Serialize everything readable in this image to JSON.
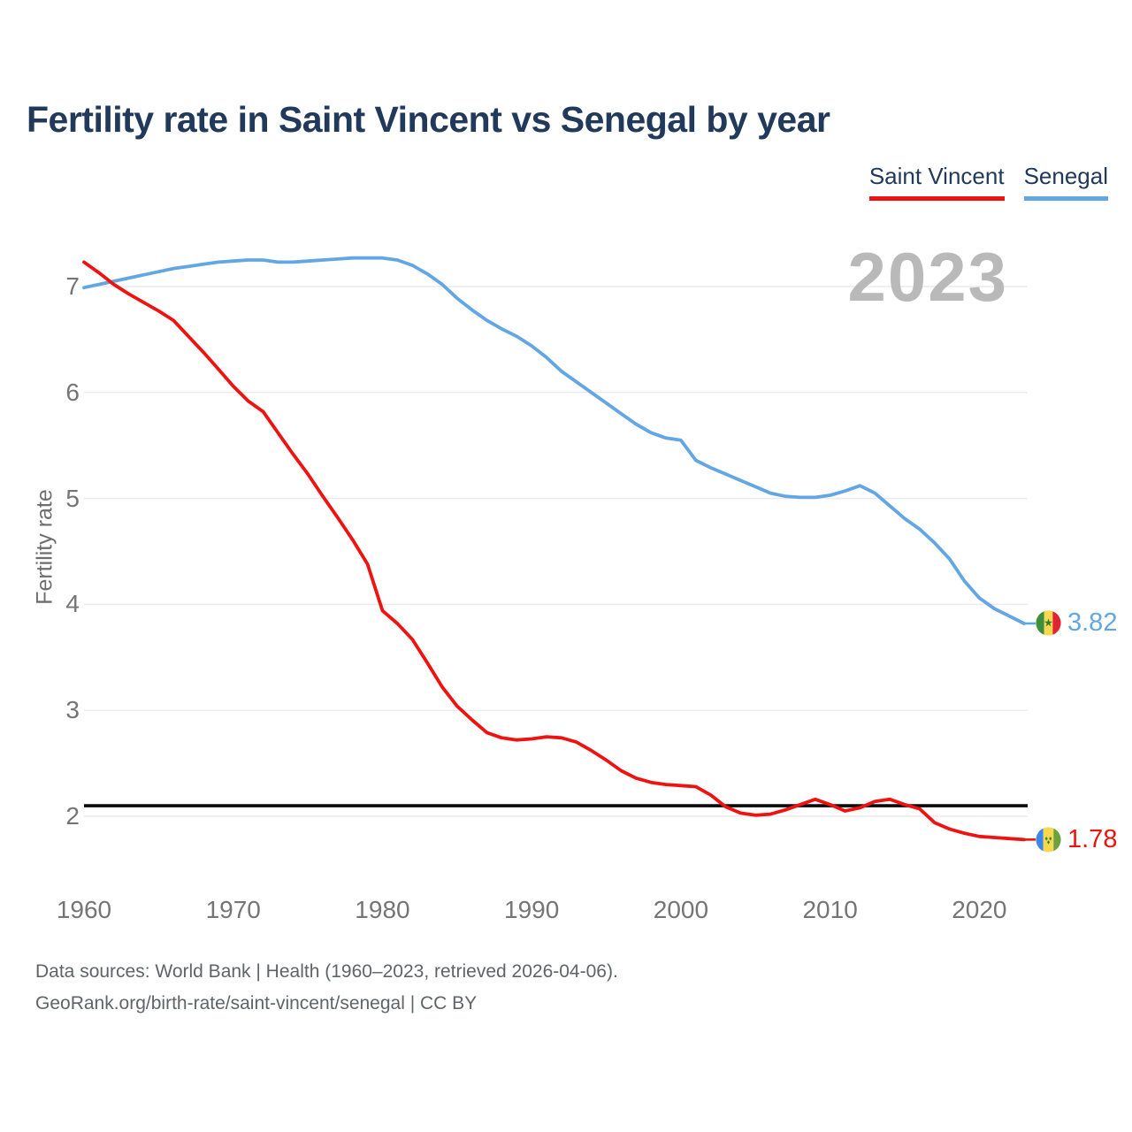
{
  "title": "Fertility rate in Saint Vincent vs Senegal by year",
  "watermark": "2023",
  "legend": [
    {
      "label": "Saint Vincent",
      "color": "#ee1310"
    },
    {
      "label": "Senegal",
      "color": "#63a6e4"
    }
  ],
  "chart_data": {
    "type": "line",
    "title": "Fertility rate in Saint Vincent vs Senegal by year",
    "xlabel": "",
    "ylabel": "Fertility rate",
    "x_ticks": [
      1960,
      1970,
      1980,
      1990,
      2000,
      2010,
      2020
    ],
    "y_ticks": [
      2,
      3,
      4,
      5,
      6,
      7
    ],
    "ylim": [
      1.55,
      7.45
    ],
    "xlim": [
      1960,
      2023
    ],
    "grid": "horizontal",
    "legend_position": "top-right",
    "x": [
      1960,
      1961,
      1962,
      1963,
      1964,
      1965,
      1966,
      1967,
      1968,
      1969,
      1970,
      1971,
      1972,
      1973,
      1974,
      1975,
      1976,
      1977,
      1978,
      1979,
      1980,
      1981,
      1982,
      1983,
      1984,
      1985,
      1986,
      1987,
      1988,
      1989,
      1990,
      1991,
      1992,
      1993,
      1994,
      1995,
      1996,
      1997,
      1998,
      1999,
      2000,
      2001,
      2002,
      2003,
      2004,
      2005,
      2006,
      2007,
      2008,
      2009,
      2010,
      2011,
      2012,
      2013,
      2014,
      2015,
      2016,
      2017,
      2018,
      2019,
      2020,
      2021,
      2022,
      2023
    ],
    "series": [
      {
        "name": "Saint Vincent",
        "color": "#ee1310",
        "end_label": "1.78",
        "values": [
          7.23,
          7.13,
          7.02,
          6.93,
          6.85,
          6.77,
          6.68,
          6.53,
          6.38,
          6.22,
          6.06,
          5.92,
          5.82,
          5.62,
          5.42,
          5.23,
          5.02,
          4.82,
          4.61,
          4.38,
          3.94,
          3.82,
          3.67,
          3.45,
          3.22,
          3.04,
          2.91,
          2.79,
          2.74,
          2.72,
          2.73,
          2.75,
          2.74,
          2.7,
          2.62,
          2.53,
          2.43,
          2.36,
          2.32,
          2.3,
          2.29,
          2.28,
          2.2,
          2.09,
          2.03,
          2.01,
          2.02,
          2.06,
          2.11,
          2.16,
          2.11,
          2.05,
          2.08,
          2.14,
          2.16,
          2.11,
          2.07,
          1.94,
          1.88,
          1.84,
          1.81,
          1.8,
          1.79,
          1.78
        ]
      },
      {
        "name": "Senegal",
        "color": "#63a6e4",
        "end_label": "3.82",
        "values": [
          6.99,
          7.02,
          7.05,
          7.08,
          7.11,
          7.14,
          7.17,
          7.19,
          7.21,
          7.23,
          7.24,
          7.25,
          7.25,
          7.23,
          7.23,
          7.24,
          7.25,
          7.26,
          7.27,
          7.27,
          7.27,
          7.25,
          7.2,
          7.12,
          7.02,
          6.89,
          6.78,
          6.68,
          6.6,
          6.53,
          6.44,
          6.33,
          6.2,
          6.1,
          6.0,
          5.9,
          5.8,
          5.7,
          5.62,
          5.57,
          5.55,
          5.36,
          5.29,
          5.23,
          5.17,
          5.11,
          5.05,
          5.02,
          5.01,
          5.01,
          5.03,
          5.07,
          5.12,
          5.05,
          4.93,
          4.81,
          4.71,
          4.58,
          4.43,
          4.22,
          4.06,
          3.96,
          3.89,
          3.82
        ]
      }
    ],
    "reference_line": {
      "value": 2.1,
      "color": "#0a0a0a"
    },
    "year_shown": "2023"
  },
  "footer": {
    "line1": "Data sources: World Bank | Health (1960–2023, retrieved 2026-04-06).",
    "line2": "GeoRank.org/birth-rate/saint-vincent/senegal | CC BY"
  }
}
